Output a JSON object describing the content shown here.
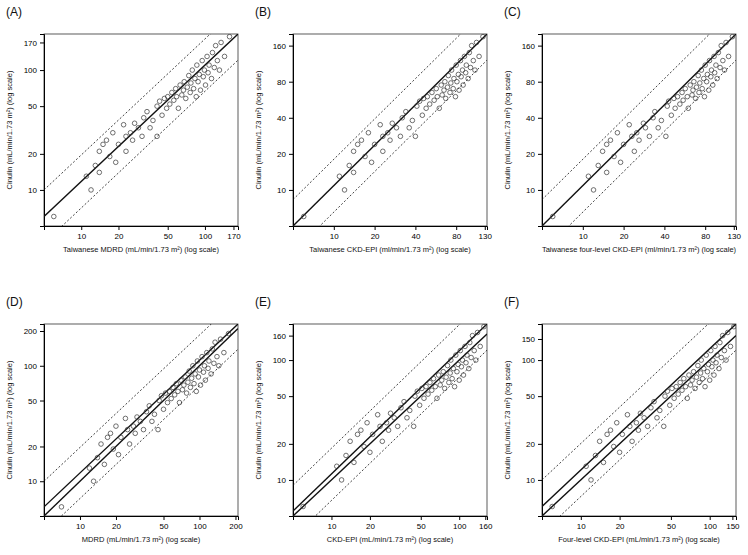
{
  "chart_data": [
    {
      "type": "scatter",
      "title": "(A)",
      "x_label": "Taiwanese MDRD (mL/min/1.73 m²) (log scale)",
      "y_label": "Cinulin (mL/min/1.73 m²) (log scale)",
      "log": true,
      "grid": false,
      "color": "#333333",
      "marker": "circle-open",
      "xlim": [
        5,
        185
      ],
      "ylim": [
        5,
        200
      ],
      "xticks": [
        10,
        20,
        50,
        100,
        170
      ],
      "yticks": [
        10,
        20,
        50,
        100,
        170
      ],
      "x": [
        6,
        11,
        12,
        13,
        14,
        14,
        15,
        16,
        17,
        18,
        19,
        20,
        22,
        23,
        23,
        25,
        26,
        27,
        29,
        31,
        32,
        34,
        36,
        38,
        41,
        41,
        43,
        45,
        47,
        49,
        50,
        52,
        54,
        56,
        58,
        59,
        61,
        63,
        65,
        67,
        68,
        70,
        72,
        74,
        76,
        77,
        79,
        81,
        83,
        85,
        86,
        88,
        90,
        92,
        95,
        97,
        99,
        101,
        104,
        106,
        108,
        113,
        115,
        119,
        122,
        126,
        131,
        135,
        144,
        158
      ],
      "values": [
        6,
        13,
        10,
        16,
        21,
        14,
        24,
        26,
        19,
        30,
        17,
        24,
        35,
        28,
        21,
        30,
        26,
        36,
        33,
        28,
        40,
        45,
        33,
        38,
        28,
        50,
        55,
        42,
        58,
        48,
        60,
        52,
        65,
        56,
        70,
        60,
        48,
        75,
        62,
        68,
        80,
        58,
        72,
        90,
        65,
        78,
        100,
        70,
        85,
        60,
        110,
        80,
        92,
        68,
        120,
        88,
        100,
        75,
        130,
        95,
        110,
        85,
        140,
        105,
        160,
        120,
        100,
        170,
        130,
        190
      ],
      "lines": [
        {
          "x": [
            5,
            185
          ],
          "values": [
            6,
            200
          ],
          "line_style": "solid"
        },
        {
          "x": [
            5,
            185
          ],
          "values": [
            10,
            330
          ],
          "line_style": "dotted"
        },
        {
          "x": [
            5,
            185
          ],
          "values": [
            3.6,
            121
          ],
          "line_style": "dotted"
        }
      ]
    },
    {
      "type": "scatter",
      "title": "(B)",
      "x_label": "Taiwanese CKD-EPI (ml/min/1.73 m²) (log scale)",
      "y_label": "Cinulin (mL/min/1.73 m²) (log scale)",
      "log": true,
      "grid": false,
      "color": "#333333",
      "marker": "circle-open",
      "xlim": [
        5,
        135
      ],
      "ylim": [
        5,
        200
      ],
      "xticks": [
        10,
        20,
        40,
        80,
        130
      ],
      "yticks": [
        10,
        20,
        40,
        80,
        160
      ],
      "x": [
        6,
        11,
        12,
        13,
        14,
        14,
        15,
        16,
        17,
        18,
        19,
        20,
        22,
        23,
        23,
        25,
        26,
        27,
        29,
        31,
        32,
        34,
        36,
        38,
        40,
        41,
        43,
        45,
        46,
        48,
        49,
        51,
        53,
        55,
        57,
        58,
        60,
        62,
        63,
        65,
        66,
        67,
        69,
        70,
        72,
        73,
        74,
        76,
        77,
        79,
        80,
        81,
        83,
        84,
        86,
        87,
        89,
        90,
        92,
        94,
        95,
        98,
        100,
        102,
        104,
        107,
        110,
        113,
        118,
        126
      ],
      "values": [
        6,
        13,
        10,
        16,
        21,
        14,
        24,
        26,
        19,
        30,
        17,
        24,
        35,
        28,
        21,
        30,
        26,
        36,
        33,
        28,
        40,
        45,
        33,
        38,
        28,
        50,
        55,
        42,
        58,
        48,
        60,
        52,
        65,
        56,
        70,
        60,
        48,
        75,
        62,
        68,
        80,
        58,
        72,
        90,
        65,
        78,
        100,
        70,
        85,
        60,
        110,
        80,
        92,
        68,
        120,
        88,
        100,
        75,
        130,
        95,
        110,
        85,
        140,
        105,
        160,
        120,
        100,
        170,
        130,
        190
      ],
      "lines": [
        {
          "x": [
            5,
            135
          ],
          "values": [
            5,
            200
          ],
          "line_style": "solid"
        },
        {
          "x": [
            5,
            135
          ],
          "values": [
            8.3,
            330
          ],
          "line_style": "dotted"
        },
        {
          "x": [
            5,
            135
          ],
          "values": [
            3,
            121
          ],
          "line_style": "dotted"
        }
      ]
    },
    {
      "type": "scatter",
      "title": "(C)",
      "x_label": "Taiwanese four-level CKD-EPI (ml/min/1.73 m²) (log scale)",
      "y_label": "Cinulin (mL/min/1.73 m²) (log scale)",
      "log": true,
      "grid": false,
      "color": "#333333",
      "marker": "circle-open",
      "xlim": [
        5,
        135
      ],
      "ylim": [
        5,
        200
      ],
      "xticks": [
        10,
        20,
        40,
        80,
        130
      ],
      "yticks": [
        10,
        20,
        40,
        80,
        160
      ],
      "x": [
        6,
        11,
        12,
        13,
        14,
        15,
        15,
        16,
        17,
        18,
        19,
        20,
        22,
        23,
        24,
        25,
        26,
        28,
        29,
        31,
        33,
        34,
        36,
        38,
        41,
        42,
        43,
        45,
        47,
        48,
        50,
        52,
        54,
        55,
        57,
        59,
        60,
        62,
        64,
        65,
        66,
        68,
        69,
        71,
        72,
        73,
        75,
        76,
        78,
        79,
        80,
        82,
        83,
        85,
        86,
        88,
        89,
        91,
        93,
        94,
        96,
        98,
        100,
        103,
        105,
        108,
        111,
        114,
        119,
        127
      ],
      "values": [
        6,
        13,
        10,
        16,
        21,
        14,
        24,
        26,
        19,
        30,
        17,
        24,
        35,
        28,
        21,
        30,
        26,
        36,
        33,
        28,
        40,
        45,
        33,
        38,
        28,
        50,
        55,
        42,
        58,
        48,
        60,
        52,
        65,
        56,
        70,
        60,
        48,
        75,
        62,
        68,
        80,
        58,
        72,
        90,
        65,
        78,
        100,
        70,
        85,
        60,
        110,
        80,
        92,
        68,
        120,
        88,
        100,
        75,
        130,
        95,
        110,
        85,
        140,
        105,
        160,
        120,
        100,
        170,
        130,
        190
      ],
      "lines": [
        {
          "x": [
            5,
            135
          ],
          "values": [
            5,
            200
          ],
          "line_style": "solid"
        },
        {
          "x": [
            5,
            135
          ],
          "values": [
            8.3,
            330
          ],
          "line_style": "dotted"
        },
        {
          "x": [
            5,
            135
          ],
          "values": [
            3,
            121
          ],
          "line_style": "dotted"
        }
      ]
    },
    {
      "type": "scatter",
      "title": "(D)",
      "x_label": "MDRD (mL/min/1.73 m²) (log scale)",
      "y_label": "Cinulin (mL/min/1.73 m²) (log scale)",
      "log": true,
      "grid": false,
      "color": "#333333",
      "marker": "circle-open",
      "xlim": [
        5,
        210
      ],
      "ylim": [
        5,
        230
      ],
      "xticks": [
        10,
        20,
        50,
        100,
        200
      ],
      "yticks": [
        10,
        20,
        50,
        100,
        200
      ],
      "x": [
        7,
        12,
        13,
        14,
        15,
        16,
        17,
        18,
        19,
        20,
        21,
        22,
        24,
        25,
        26,
        28,
        29,
        30,
        32,
        34,
        36,
        38,
        40,
        42,
        45,
        46,
        48,
        50,
        52,
        54,
        56,
        58,
        60,
        62,
        64,
        66,
        68,
        70,
        72,
        74,
        76,
        78,
        80,
        82,
        84,
        86,
        88,
        90,
        92,
        94,
        96,
        98,
        100,
        102,
        105,
        108,
        110,
        112,
        115,
        118,
        120,
        125,
        128,
        132,
        135,
        140,
        145,
        150,
        160,
        175
      ],
      "values": [
        6,
        13,
        10,
        16,
        21,
        14,
        24,
        26,
        19,
        30,
        17,
        24,
        35,
        28,
        21,
        30,
        26,
        36,
        33,
        28,
        40,
        45,
        33,
        38,
        28,
        50,
        55,
        42,
        58,
        48,
        60,
        52,
        65,
        56,
        70,
        60,
        48,
        75,
        62,
        68,
        80,
        58,
        72,
        90,
        65,
        78,
        100,
        70,
        85,
        60,
        110,
        80,
        92,
        68,
        120,
        88,
        100,
        75,
        130,
        95,
        110,
        85,
        140,
        105,
        160,
        120,
        100,
        170,
        130,
        190
      ],
      "lines": [
        {
          "x": [
            5,
            210
          ],
          "values": [
            6,
            230
          ],
          "line_style": "solid"
        },
        {
          "x": [
            5,
            210
          ],
          "values": [
            5,
            210
          ],
          "line_style": "solid"
        },
        {
          "x": [
            5,
            210
          ],
          "values": [
            10,
            380
          ],
          "line_style": "dotted"
        },
        {
          "x": [
            5,
            210
          ],
          "values": [
            3.6,
            139
          ],
          "line_style": "dotted"
        }
      ]
    },
    {
      "type": "scatter",
      "title": "(E)",
      "x_label": "CKD-EPI (mL/min/1.73 m²) (log scale)",
      "y_label": "Cinulin (mL/min/1.73 m²) (log scale)",
      "log": true,
      "grid": false,
      "color": "#333333",
      "marker": "circle-open",
      "xlim": [
        5,
        165
      ],
      "ylim": [
        5,
        200
      ],
      "xticks": [
        10,
        20,
        50,
        100,
        160
      ],
      "yticks": [
        10,
        20,
        50,
        100,
        160
      ],
      "x": [
        6,
        11,
        12,
        13,
        14,
        15,
        16,
        17,
        18,
        19,
        20,
        21,
        23,
        24,
        25,
        27,
        28,
        29,
        31,
        33,
        35,
        37,
        39,
        41,
        44,
        45,
        47,
        49,
        51,
        53,
        55,
        57,
        59,
        61,
        63,
        65,
        67,
        69,
        71,
        73,
        75,
        77,
        79,
        81,
        83,
        85,
        86,
        88,
        90,
        92,
        94,
        96,
        98,
        100,
        102,
        104,
        106,
        108,
        111,
        113,
        115,
        119,
        121,
        124,
        127,
        131,
        135,
        139,
        146,
        156
      ],
      "values": [
        6,
        13,
        10,
        16,
        21,
        14,
        24,
        26,
        19,
        30,
        17,
        24,
        35,
        28,
        21,
        30,
        26,
        36,
        33,
        28,
        40,
        45,
        33,
        38,
        28,
        50,
        55,
        42,
        58,
        48,
        60,
        52,
        65,
        56,
        70,
        60,
        48,
        75,
        62,
        68,
        80,
        58,
        72,
        90,
        65,
        78,
        100,
        70,
        85,
        60,
        110,
        80,
        92,
        68,
        120,
        88,
        100,
        75,
        130,
        95,
        110,
        85,
        140,
        105,
        160,
        120,
        100,
        170,
        130,
        190
      ],
      "lines": [
        {
          "x": [
            5,
            165
          ],
          "values": [
            5.5,
            200
          ],
          "line_style": "solid"
        },
        {
          "x": [
            5,
            165
          ],
          "values": [
            5,
            165
          ],
          "line_style": "solid"
        },
        {
          "x": [
            5,
            165
          ],
          "values": [
            9,
            330
          ],
          "line_style": "dotted"
        },
        {
          "x": [
            5,
            165
          ],
          "values": [
            3.3,
            121
          ],
          "line_style": "dotted"
        }
      ]
    },
    {
      "type": "scatter",
      "title": "(F)",
      "x_label": "Four-level CKD-EPI (mL/min/1.73 m²) (log scale)",
      "y_label": "Cinulin (mL/min/1.73 m²) (log scale)",
      "log": true,
      "grid": false,
      "color": "#333333",
      "marker": "circle-open",
      "xlim": [
        5,
        160
      ],
      "ylim": [
        5,
        200
      ],
      "xticks": [
        10,
        20,
        50,
        100,
        150
      ],
      "yticks": [
        10,
        20,
        50,
        100,
        150
      ],
      "x": [
        6,
        11,
        12,
        13,
        14,
        15,
        16,
        17,
        18,
        19,
        20,
        21,
        23,
        24,
        25,
        27,
        28,
        29,
        31,
        33,
        35,
        37,
        39,
        41,
        44,
        45,
        47,
        49,
        51,
        53,
        55,
        57,
        59,
        61,
        63,
        65,
        67,
        69,
        71,
        73,
        75,
        77,
        79,
        81,
        83,
        85,
        86,
        88,
        90,
        92,
        94,
        96,
        98,
        100,
        102,
        104,
        106,
        108,
        110,
        112,
        114,
        118,
        120,
        123,
        126,
        130,
        134,
        138,
        145,
        154
      ],
      "values": [
        6,
        13,
        10,
        16,
        21,
        14,
        24,
        26,
        19,
        30,
        17,
        24,
        35,
        28,
        21,
        30,
        26,
        36,
        33,
        28,
        40,
        45,
        33,
        38,
        28,
        50,
        55,
        42,
        58,
        48,
        60,
        52,
        65,
        56,
        70,
        60,
        48,
        75,
        62,
        68,
        80,
        58,
        72,
        90,
        65,
        78,
        100,
        70,
        85,
        60,
        110,
        80,
        92,
        68,
        120,
        88,
        100,
        75,
        130,
        95,
        110,
        85,
        140,
        105,
        160,
        120,
        100,
        170,
        130,
        190
      ],
      "lines": [
        {
          "x": [
            5,
            160
          ],
          "values": [
            6,
            200
          ],
          "line_style": "solid"
        },
        {
          "x": [
            5,
            160
          ],
          "values": [
            5,
            160
          ],
          "line_style": "solid"
        },
        {
          "x": [
            5,
            160
          ],
          "values": [
            10,
            330
          ],
          "line_style": "dotted"
        },
        {
          "x": [
            5,
            160
          ],
          "values": [
            3.6,
            121
          ],
          "line_style": "dotted"
        }
      ]
    }
  ]
}
